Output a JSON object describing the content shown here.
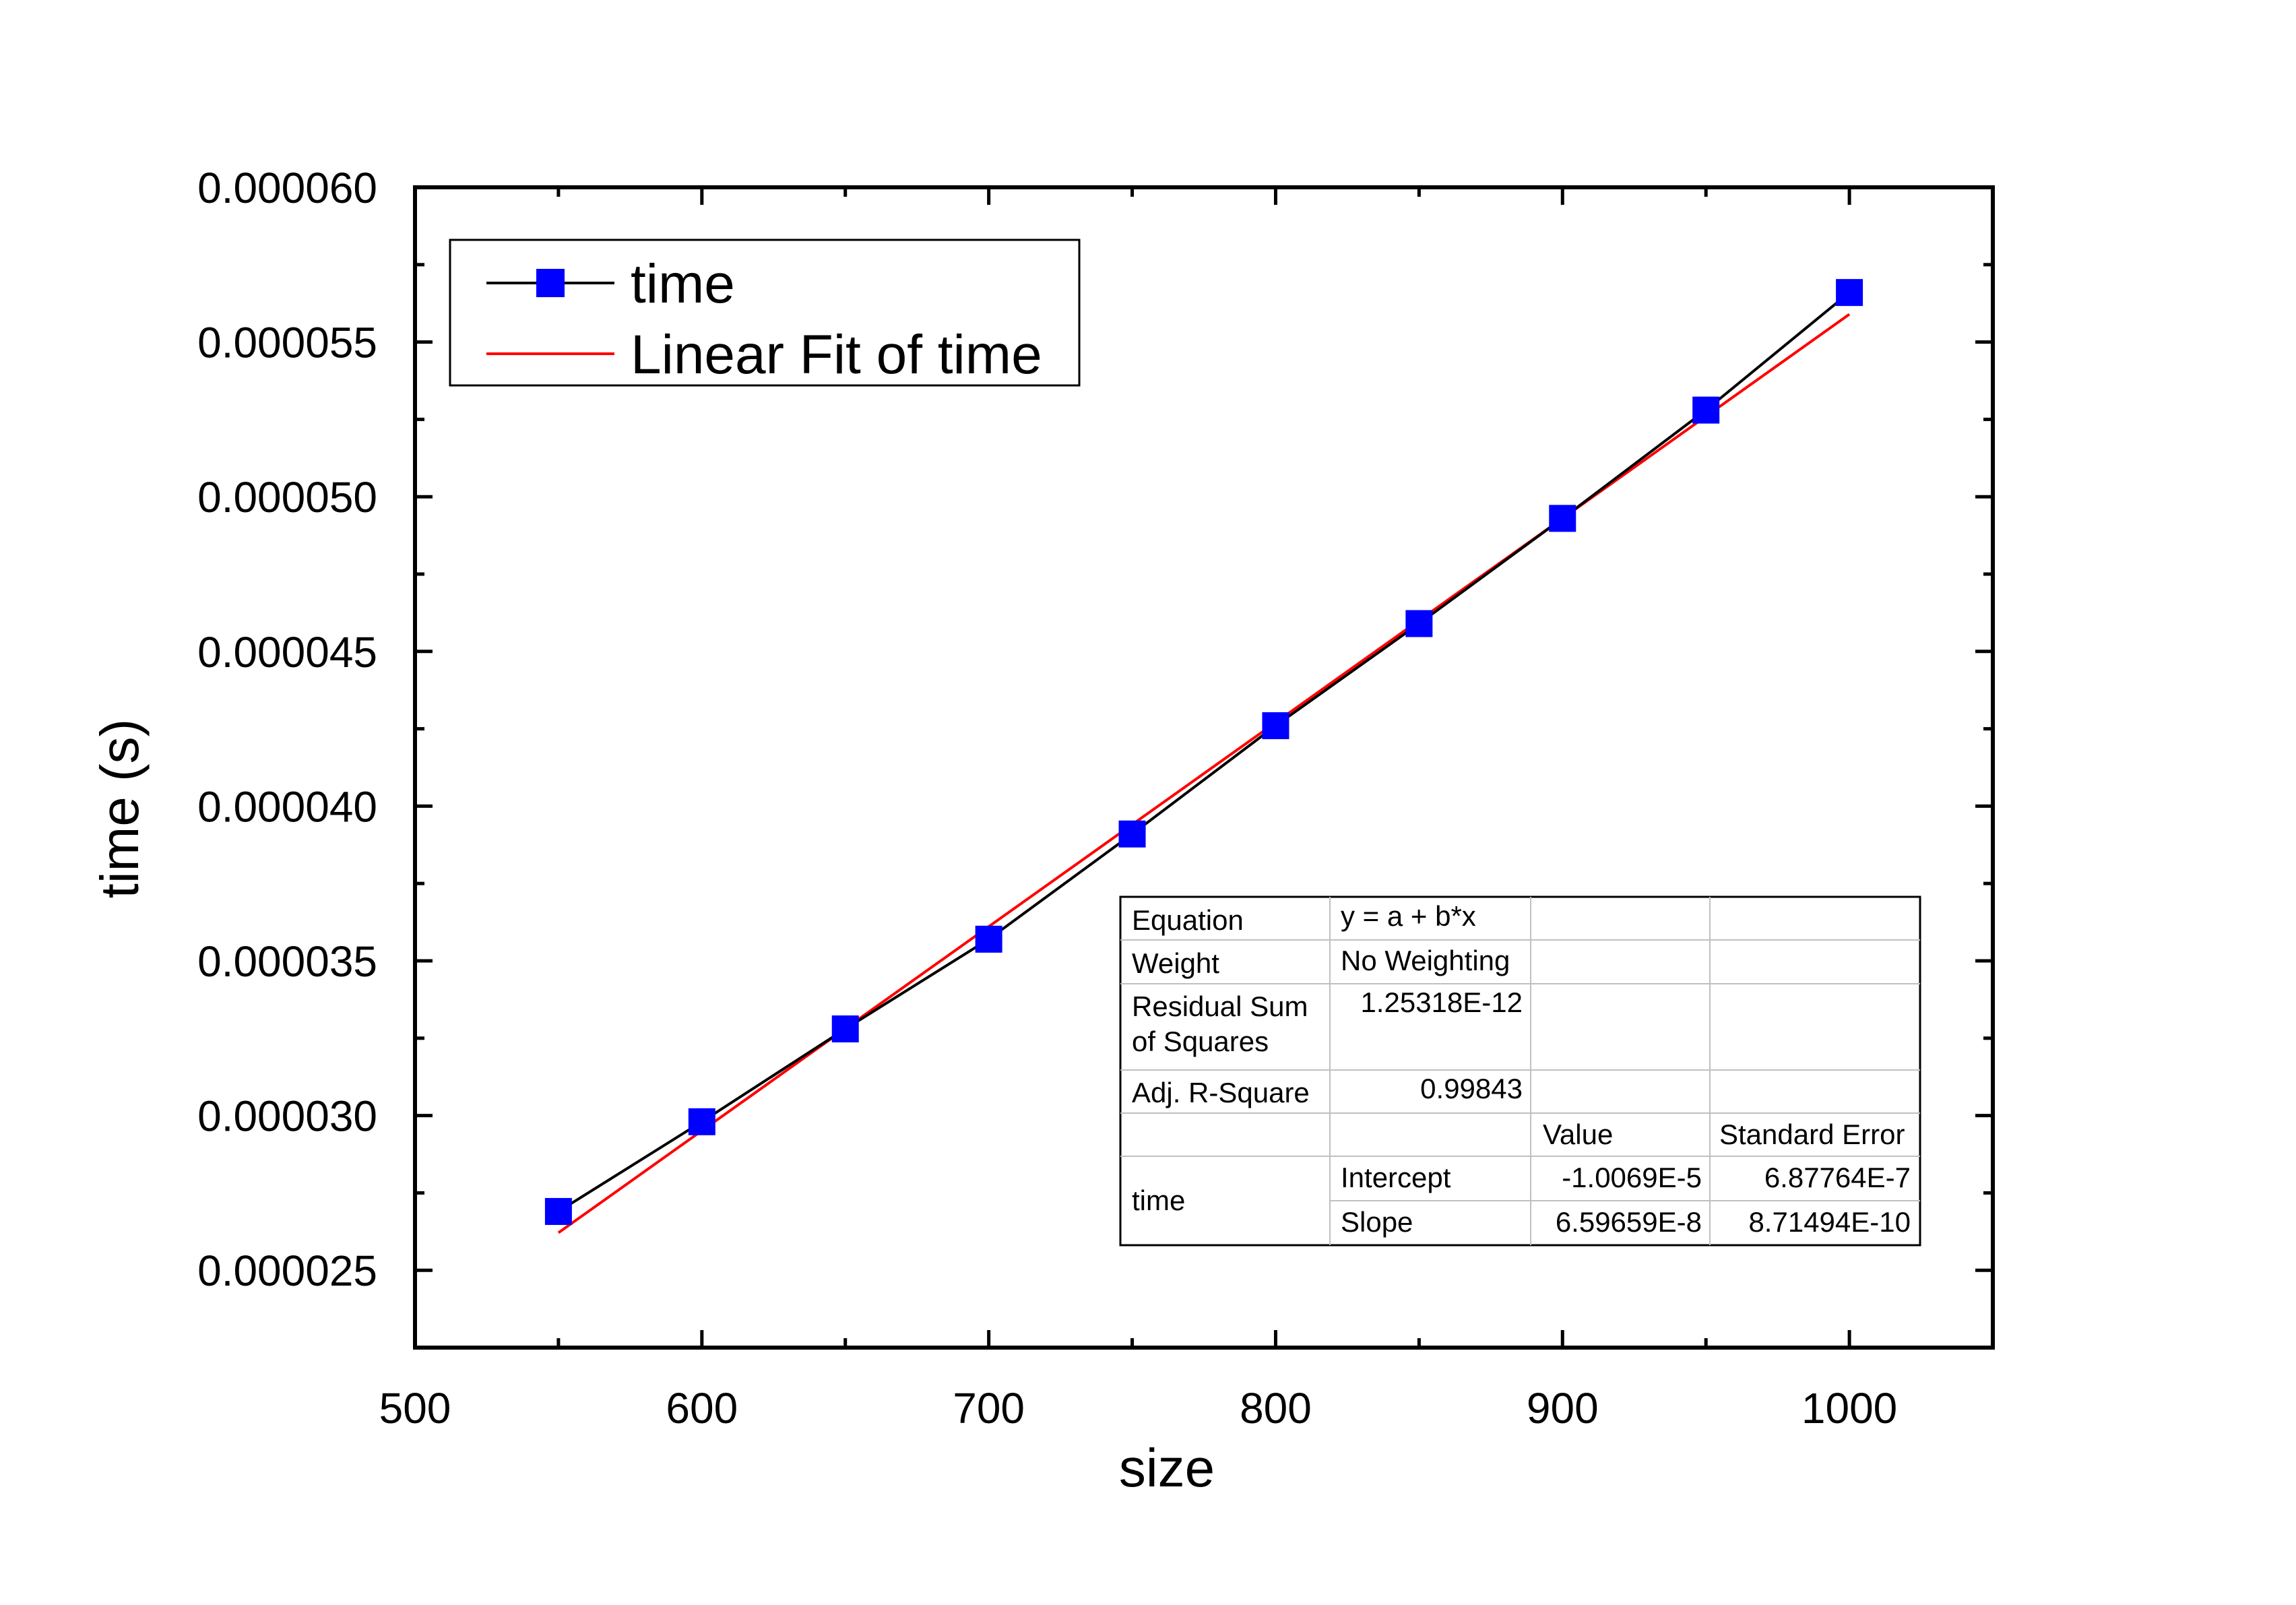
{
  "chart_data": {
    "type": "scatter",
    "title": "",
    "xlabel": "size",
    "ylabel": "time (s)",
    "xlim": [
      500,
      1050
    ],
    "ylim": [
      2.25e-05,
      6e-05
    ],
    "x_ticks": [
      "500",
      "600",
      "700",
      "800",
      "900",
      "1000"
    ],
    "y_ticks": [
      "0.000025",
      "0.000030",
      "0.000035",
      "0.000040",
      "0.000045",
      "0.000050",
      "0.000055",
      "0.000060"
    ],
    "grid": false,
    "legend_position": "top-left",
    "series": [
      {
        "name": "time",
        "color": "#0000ff",
        "line_color": "#000000",
        "marker": "square",
        "x": [
          550,
          600,
          650,
          700,
          750,
          800,
          850,
          900,
          950,
          1000
        ],
        "y": [
          2.69e-05,
          2.98e-05,
          3.28e-05,
          3.57e-05,
          3.91e-05,
          4.26e-05,
          4.59e-05,
          4.93e-05,
          5.28e-05,
          5.66e-05
        ]
      },
      {
        "name": "Linear Fit of time",
        "color": "#ff0000",
        "type": "line",
        "intercept": -1.0069e-05,
        "slope": 6.59659e-08,
        "x_range": [
          550,
          1000
        ]
      }
    ],
    "fit_table": {
      "rows": [
        [
          "Equation",
          "y = a + b*x",
          "",
          ""
        ],
        [
          "Weight",
          "No Weighting",
          "",
          ""
        ],
        [
          "Residual Sum of Squares",
          "1.25318E-12",
          "",
          ""
        ],
        [
          "Adj. R-Square",
          "0.99843",
          "",
          ""
        ],
        [
          "",
          "",
          "Value",
          "Standard Error"
        ],
        [
          "time",
          "Intercept",
          "-1.0069E-5",
          "6.87764E-7"
        ],
        [
          "",
          "Slope",
          "6.59659E-8",
          "8.71494E-10"
        ]
      ]
    }
  }
}
